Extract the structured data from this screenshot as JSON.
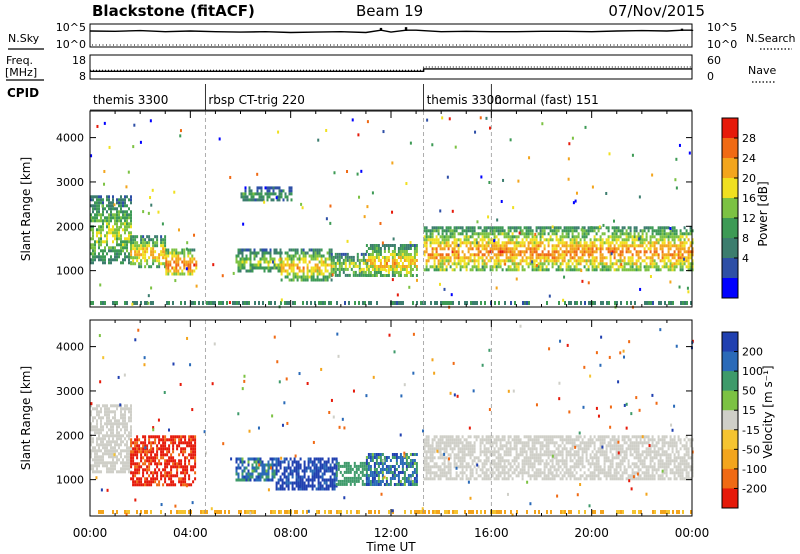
{
  "header": {
    "station": "Blackstone (fitACF)",
    "beam": "Beam 19",
    "date": "07/Nov/2015"
  },
  "chart_data": [
    {
      "type": "line",
      "name": "nsky-panel",
      "left_label": "N.Sky",
      "right_label": "N.Search",
      "left_ticks": [
        "10^5",
        "10^0"
      ],
      "right_ticks": [
        "10^5",
        "10^0"
      ],
      "x_hours": [
        0,
        1,
        2,
        3,
        4,
        5,
        6,
        7,
        8,
        9,
        10,
        11,
        11.6,
        12,
        12.6,
        13,
        14,
        15,
        16,
        17,
        18,
        19,
        20,
        21,
        22,
        23,
        23.6,
        24
      ],
      "nsky": [
        4.2,
        4.1,
        4.3,
        4.0,
        4.2,
        4.0,
        3.9,
        4.0,
        3.8,
        3.9,
        4.0,
        3.8,
        5.0,
        3.9,
        5.2,
        4.4,
        4.0,
        4.1,
        4.0,
        4.0,
        4.1,
        4.1,
        4.0,
        4.2,
        4.3,
        4.2,
        4.8,
        4.5
      ]
    },
    {
      "type": "line",
      "name": "freq-panel",
      "left_label": "Freq.",
      "left_unit": "[MHz]",
      "right_label": "Nave",
      "left_ticks": [
        "18",
        "8"
      ],
      "right_ticks": [
        "60",
        "0"
      ],
      "freq_steps": [
        [
          0,
          13.3,
          11.2
        ],
        [
          13.3,
          24,
          12.2
        ]
      ],
      "nave_steps": [
        [
          0,
          13.3,
          22
        ],
        [
          13.3,
          24,
          30
        ]
      ]
    },
    {
      "type": "table",
      "name": "cpid-bar",
      "label": "CPID",
      "segments": [
        {
          "start": 0,
          "end": 4.6,
          "label": "themis 3300"
        },
        {
          "start": 4.6,
          "end": 13.3,
          "label": "rbsp CT-trig 220"
        },
        {
          "start": 13.3,
          "end": 16.0,
          "label": "themis 3300"
        },
        {
          "start": 16.0,
          "end": 24,
          "label": "normal (fast) 151"
        }
      ]
    },
    {
      "type": "heatmap",
      "name": "power-panel",
      "ylabel": "Slant Range [km]",
      "yticks": [
        1000,
        2000,
        3000,
        4000
      ],
      "ylim": [
        180,
        4600
      ],
      "colorbar_label": "Power [dB]",
      "colorbar_ticks": [
        "28",
        "24",
        "20",
        "16",
        "12",
        "8",
        "4"
      ],
      "colorbar_colors": [
        "#0000ff",
        "#2e4fa6",
        "#3c7d6e",
        "#3d9a55",
        "#7cc243",
        "#f0e020",
        "#f3a51d",
        "#f06a14",
        "#e61a0a"
      ],
      "echo_regions": [
        {
          "x": [
            0.0,
            1.6
          ],
          "r": [
            1200,
            2700
          ],
          "p": 14
        },
        {
          "x": [
            1.6,
            3.0
          ],
          "r": [
            1100,
            1800
          ],
          "p": 18
        },
        {
          "x": [
            3.0,
            4.2
          ],
          "r": [
            900,
            1500
          ],
          "p": 22
        },
        {
          "x": [
            5.8,
            7.6
          ],
          "r": [
            1000,
            1500
          ],
          "p": 14
        },
        {
          "x": [
            7.6,
            9.6
          ],
          "r": [
            800,
            1500
          ],
          "p": 18
        },
        {
          "x": [
            9.6,
            11.0
          ],
          "r": [
            900,
            1400
          ],
          "p": 14
        },
        {
          "x": [
            11.0,
            13.0
          ],
          "r": [
            900,
            1600
          ],
          "p": 18
        },
        {
          "x": [
            13.3,
            24.0
          ],
          "r": [
            1000,
            2000
          ],
          "p": 20
        },
        {
          "x": [
            6.0,
            8.0
          ],
          "r": [
            2600,
            2900
          ],
          "p": 10
        }
      ]
    },
    {
      "type": "heatmap",
      "name": "velocity-panel",
      "ylabel": "Slant Range [km]",
      "xlabel": "Time UT",
      "yticks": [
        1000,
        2000,
        3000,
        4000
      ],
      "ylim": [
        180,
        4600
      ],
      "colorbar_label": "Velocity [m s⁻¹]",
      "colorbar_ticks": [
        "200",
        "100",
        "50",
        "15",
        "-15",
        "-50",
        "-100",
        "-200"
      ],
      "colorbar_colors": [
        "#2040b0",
        "#2a6ab8",
        "#3e9a6a",
        "#7cc243",
        "#cfcfc8",
        "#f5c431",
        "#f3a51d",
        "#f06a14",
        "#e61a0a"
      ],
      "echo_regions": [
        {
          "x": [
            0.0,
            1.6
          ],
          "r": [
            1200,
            2700
          ],
          "v": 0
        },
        {
          "x": [
            1.6,
            4.2
          ],
          "r": [
            900,
            2000
          ],
          "v": -200
        },
        {
          "x": [
            5.8,
            7.4
          ],
          "r": [
            1000,
            1500
          ],
          "v": 100
        },
        {
          "x": [
            7.4,
            9.8
          ],
          "r": [
            800,
            1500
          ],
          "v": 200
        },
        {
          "x": [
            9.8,
            11.0
          ],
          "r": [
            900,
            1400
          ],
          "v": 50
        },
        {
          "x": [
            11.0,
            13.0
          ],
          "r": [
            900,
            1600
          ],
          "v": 100
        },
        {
          "x": [
            13.3,
            24.0
          ],
          "r": [
            1000,
            2000
          ],
          "v": 0
        }
      ]
    }
  ],
  "xaxis": {
    "ticks": [
      "00:00",
      "04:00",
      "08:00",
      "12:00",
      "16:00",
      "20:00",
      "00:00"
    ],
    "label": "Time UT"
  }
}
